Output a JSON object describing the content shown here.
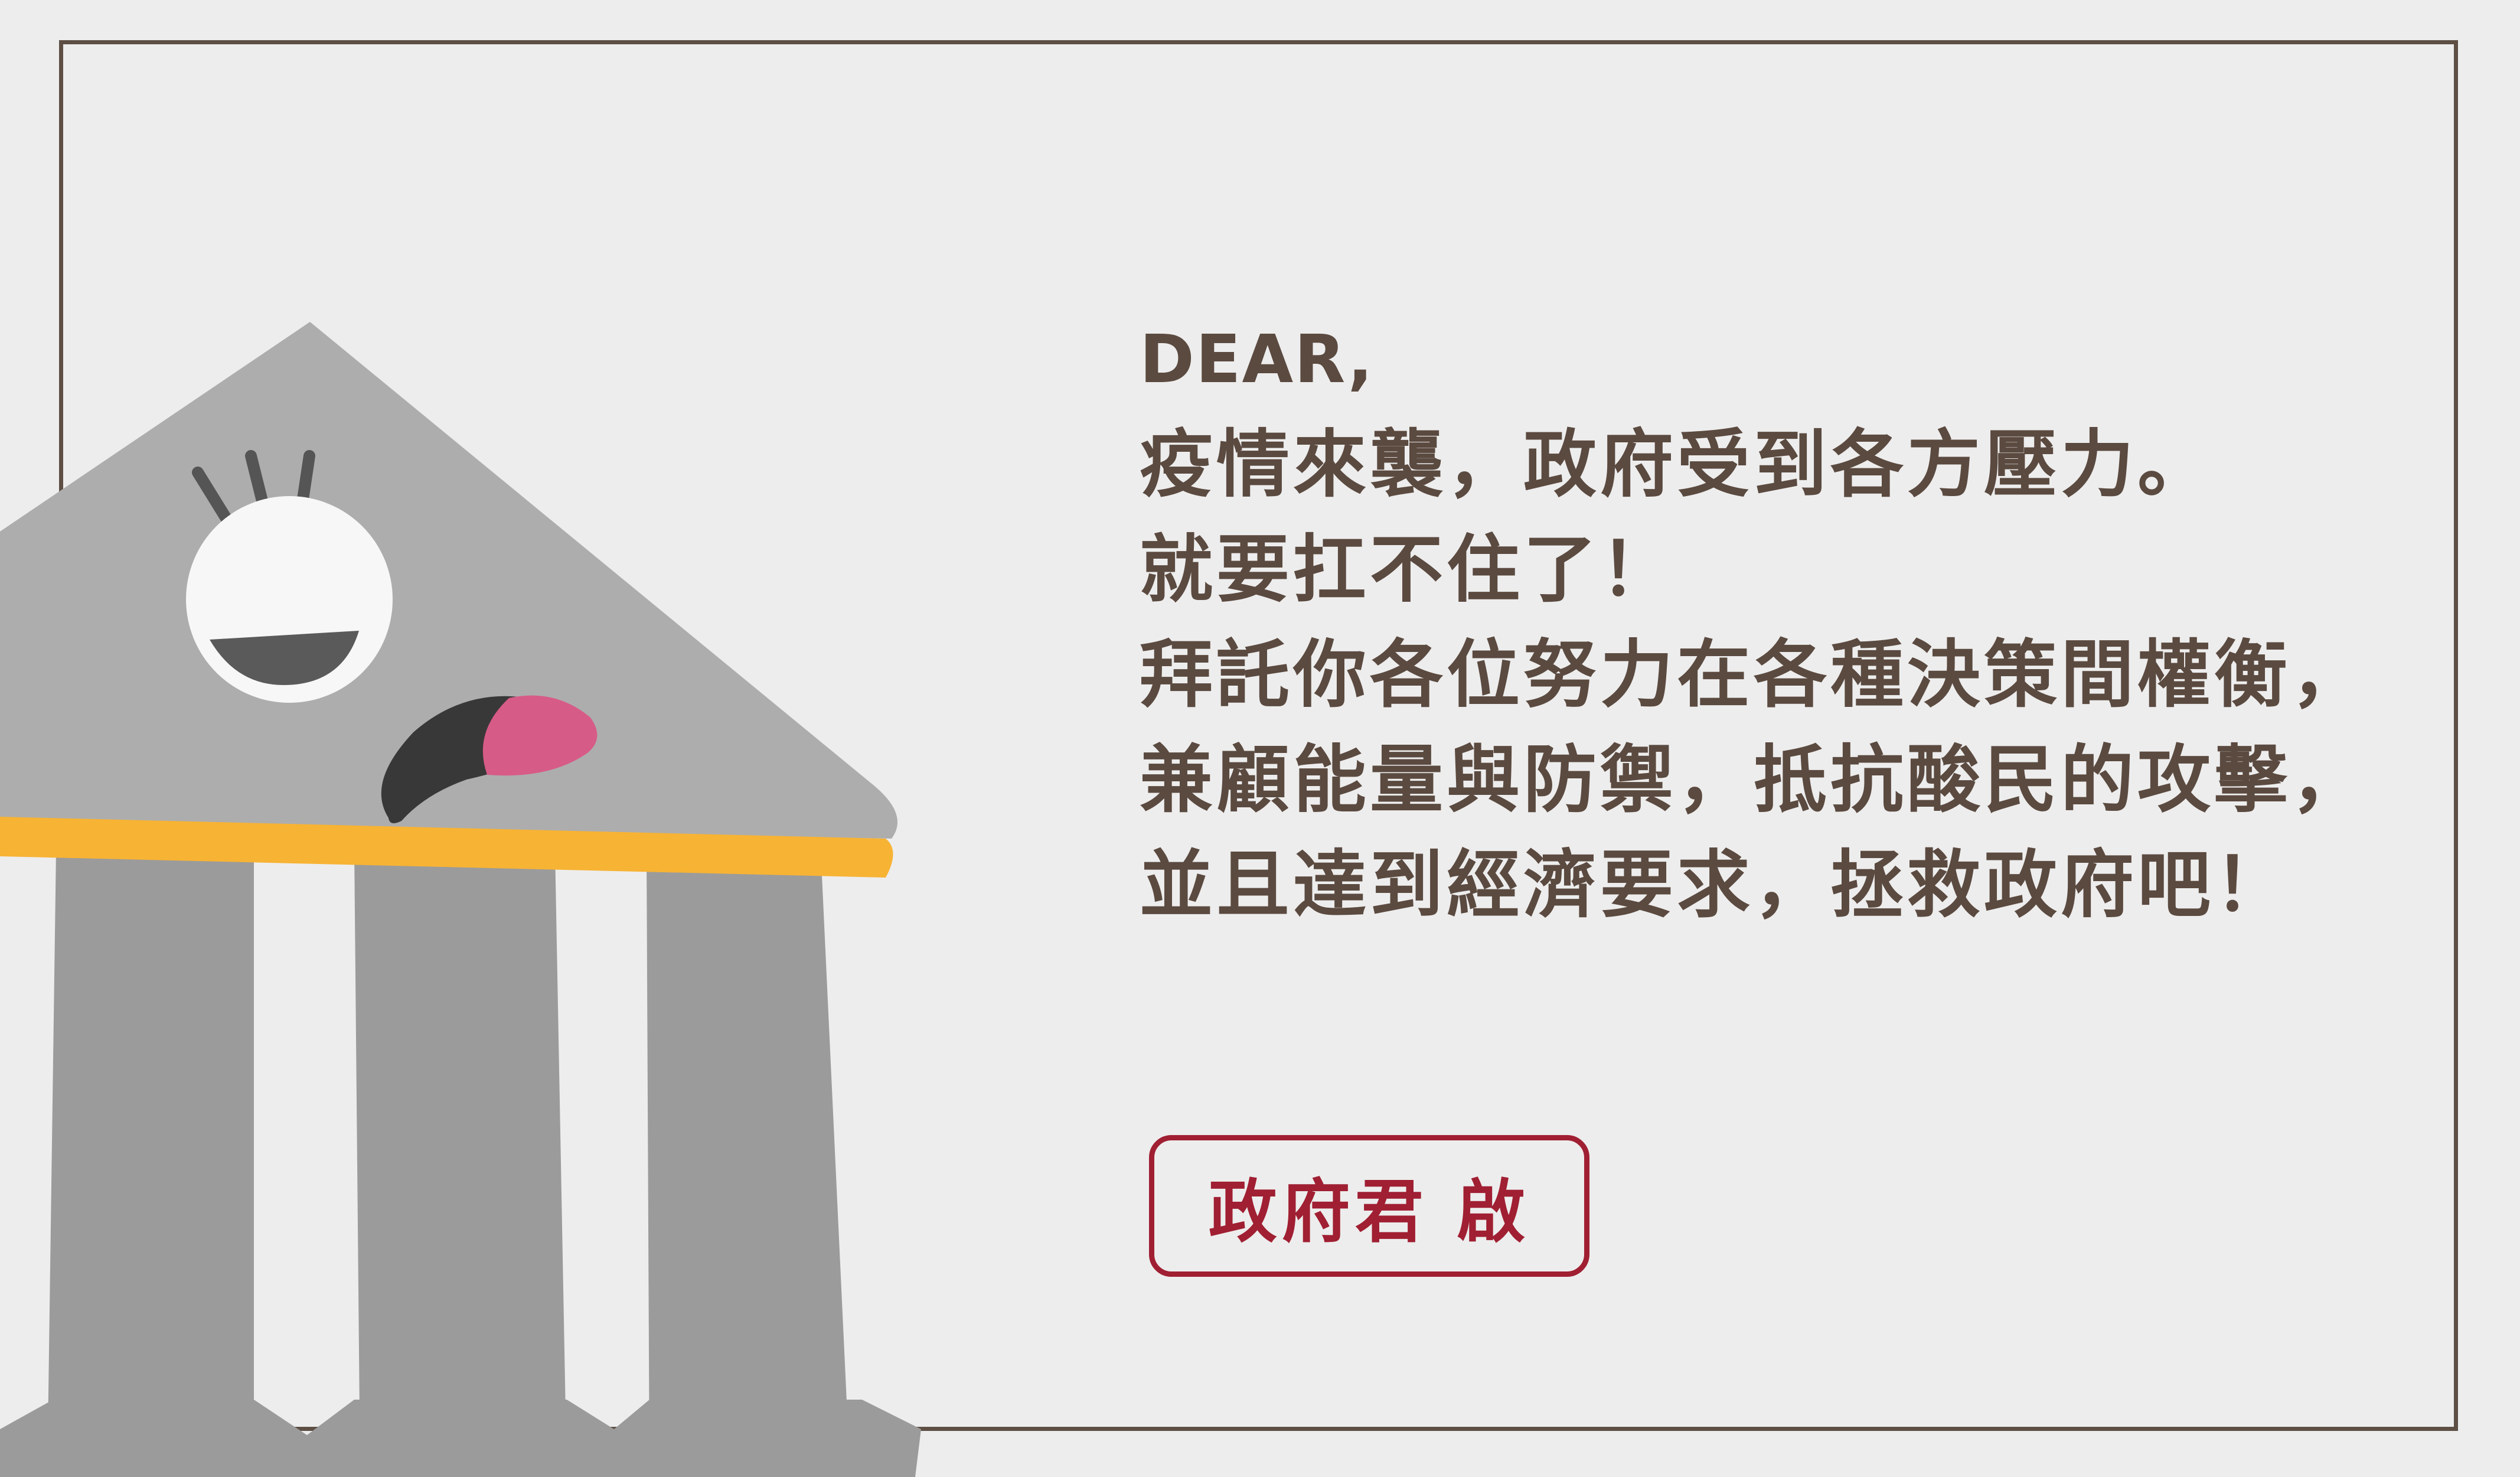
{
  "letter": {
    "greeting": "DEAR,",
    "lines": [
      "疫情來襲，政府受到各方壓力。",
      "就要扛不住了！",
      "拜託你各位努力在各種決策間權衡，",
      "兼顧能量與防禦，抵抗酸民的攻擊，",
      "並且達到經濟要求，拯救政府吧！"
    ]
  },
  "signature": {
    "label": "政府君 啟"
  },
  "colors": {
    "background": "#ededed",
    "frame": "#5e4f45",
    "text": "#5b4a40",
    "signature": "#a01f32",
    "building_roof": "#adadad",
    "building_columns": "#9b9b9b",
    "trim": "#f7b334",
    "tongue": "#d75b87"
  },
  "icons": {
    "mascot": "government-building-mascot-icon"
  }
}
